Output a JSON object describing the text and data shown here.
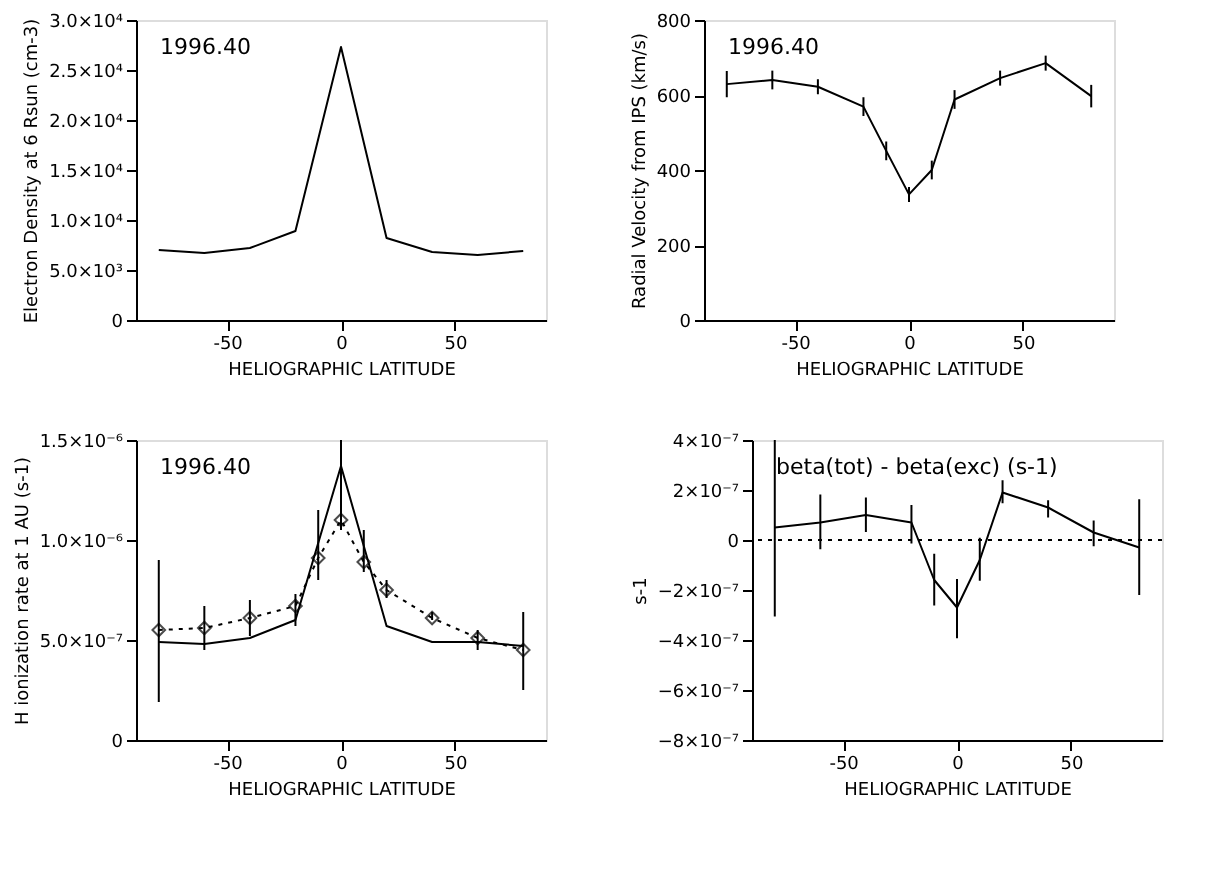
{
  "chart_data": [
    {
      "type": "line",
      "ylabel": "Electron Density at 6 Rsun (cm-3)",
      "xlabel": "HELIOGRAPHIC LATITUDE",
      "annotations": [
        "1996.40"
      ],
      "x": [
        -80,
        -60,
        -40,
        -20,
        0,
        20,
        40,
        60,
        80
      ],
      "series": [
        {
          "color": "#000000",
          "line_style": "solid",
          "values": [
            7000,
            6700,
            7200,
            8900,
            27300,
            8200,
            6800,
            6500,
            6900
          ]
        }
      ],
      "xlim": [
        -90,
        90
      ],
      "xticks": [
        -50,
        0,
        50
      ],
      "ylim": [
        0,
        30000
      ],
      "yticks": [
        0,
        {
          "value": 5000,
          "label": "5.0×10³"
        },
        {
          "value": 10000,
          "label": "1.0×10⁴"
        },
        {
          "value": 15000,
          "label": "1.5×10⁴"
        },
        {
          "value": 20000,
          "label": "2.0×10⁴"
        },
        {
          "value": 25000,
          "label": "2.5×10⁴"
        },
        {
          "value": 30000,
          "label": "3.0×10⁴"
        }
      ],
      "grid": false
    },
    {
      "type": "line",
      "ylabel": "Radial Velocity from IPS (km/s)",
      "xlabel": "HELIOGRAPHIC LATITUDE",
      "annotations": [
        "1996.40"
      ],
      "series": [
        {
          "color": "#000000",
          "line_style": "solid",
          "x": [
            -80,
            -60,
            -40,
            -20,
            -10,
            0,
            10,
            20,
            40,
            60,
            80
          ],
          "values": [
            629,
            640,
            622,
            569,
            451,
            335,
            400,
            588,
            645,
            685,
            597
          ],
          "errors": [
            35,
            25,
            20,
            25,
            25,
            20,
            25,
            25,
            20,
            20,
            30
          ]
        }
      ],
      "xlim": [
        -90,
        90
      ],
      "xticks": [
        -50,
        0,
        50
      ],
      "ylim": [
        0,
        800
      ],
      "yticks": [
        0,
        200,
        400,
        600,
        800
      ],
      "grid": false
    },
    {
      "type": "line",
      "ylabel": "H ionization rate at 1 AU (s-1)",
      "xlabel": "HELIOGRAPHIC LATITUDE",
      "annotations": [
        "1996.40"
      ],
      "series": [
        {
          "color": "#000000",
          "line_style": "solid",
          "marker": "none",
          "x": [
            -80,
            -60,
            -40,
            -20,
            0,
            20,
            40,
            60,
            80
          ],
          "values": [
            4.9e-07,
            4.8e-07,
            5.1e-07,
            6e-07,
            1.37e-06,
            5.7e-07,
            4.9e-07,
            4.9e-07,
            4.7e-07
          ]
        },
        {
          "color": "#000000",
          "line_style": "dotted",
          "marker": "diamond",
          "x": [
            -80,
            -60,
            -40,
            -20,
            -10,
            0,
            10,
            20,
            40,
            60,
            80
          ],
          "values": [
            5.5e-07,
            5.6e-07,
            6.1e-07,
            6.7e-07,
            9.1e-07,
            1.1e-06,
            8.9e-07,
            7.5e-07,
            6.1e-07,
            5.1e-07,
            4.5e-07
          ],
          "errors": [
            [
              1.9e-07,
              9e-07
            ],
            [
              4.5e-07,
              6.7e-07
            ],
            [
              5.2e-07,
              7e-07
            ],
            [
              5.7e-07,
              7.3e-07
            ],
            [
              8e-07,
              1.15e-06
            ],
            [
              1.05e-06,
              1.5e-06
            ],
            [
              8.4e-07,
              1.05e-06
            ],
            [
              7.1e-07,
              8e-07
            ],
            [
              6e-07,
              6.4e-07
            ],
            [
              4.5e-07,
              5.5e-07
            ],
            [
              2.5e-07,
              6.4e-07
            ]
          ]
        }
      ],
      "xlim": [
        -90,
        90
      ],
      "xticks": [
        -50,
        0,
        50
      ],
      "ylim": [
        0,
        1.5e-06
      ],
      "yticks": [
        0,
        {
          "value": 5e-07,
          "label": "5.0×10⁻⁷"
        },
        {
          "value": 1e-06,
          "label": "1.0×10⁻⁶"
        },
        {
          "value": 1.5e-06,
          "label": "1.5×10⁻⁶"
        }
      ],
      "grid": false
    },
    {
      "type": "line",
      "ylabel": "s-1",
      "xlabel": "HELIOGRAPHIC LATITUDE",
      "annotations": [
        "beta(tot) - beta(exc) (s-1)"
      ],
      "series": [
        {
          "color": "#000000",
          "line_style": "solid",
          "x": [
            -80,
            -60,
            -40,
            -20,
            -10,
            0,
            10,
            20,
            40,
            60,
            80
          ],
          "values": [
            5e-08,
            7e-08,
            1e-07,
            7e-08,
            -1.6e-07,
            -2.7e-07,
            -8e-08,
            1.9e-07,
            1.3e-07,
            3e-08,
            -3e-08
          ],
          "errors": [
            [
              -3.06e-07,
              4e-07
            ],
            [
              -3.7e-08,
              1.82e-07
            ],
            [
              3.2e-08,
              1.7e-07
            ],
            [
              -1.4e-08,
              1.4e-07
            ],
            [
              -2.62e-07,
              -5.5e-08
            ],
            [
              -3.93e-07,
              -1.56e-07
            ],
            [
              -1.63e-07,
              9e-09
            ],
            [
              1.47e-07,
              2.39e-07
            ],
            [
              9e-08,
              1.59e-07
            ],
            [
              -2.5e-08,
              7.8e-08
            ],
            [
              -2.2e-07,
              1.63e-07
            ]
          ]
        }
      ],
      "ref_lines": [
        {
          "axis": "y",
          "value": 0,
          "line_style": "dotted",
          "color": "#000000"
        }
      ],
      "xlim": [
        -90,
        90
      ],
      "xticks": [
        -50,
        0,
        50
      ],
      "ylim": [
        -8e-07,
        4e-07
      ],
      "yticks": [
        {
          "value": -8e-07,
          "label": "−8×10⁻⁷"
        },
        {
          "value": -6e-07,
          "label": "−6×10⁻⁷"
        },
        {
          "value": -4e-07,
          "label": "−4×10⁻⁷"
        },
        {
          "value": -2e-07,
          "label": "−2×10⁻⁷"
        },
        0,
        {
          "value": 2e-07,
          "label": "2×10⁻⁷"
        },
        {
          "value": 4e-07,
          "label": "4×10⁻⁷"
        }
      ],
      "grid": false
    }
  ]
}
